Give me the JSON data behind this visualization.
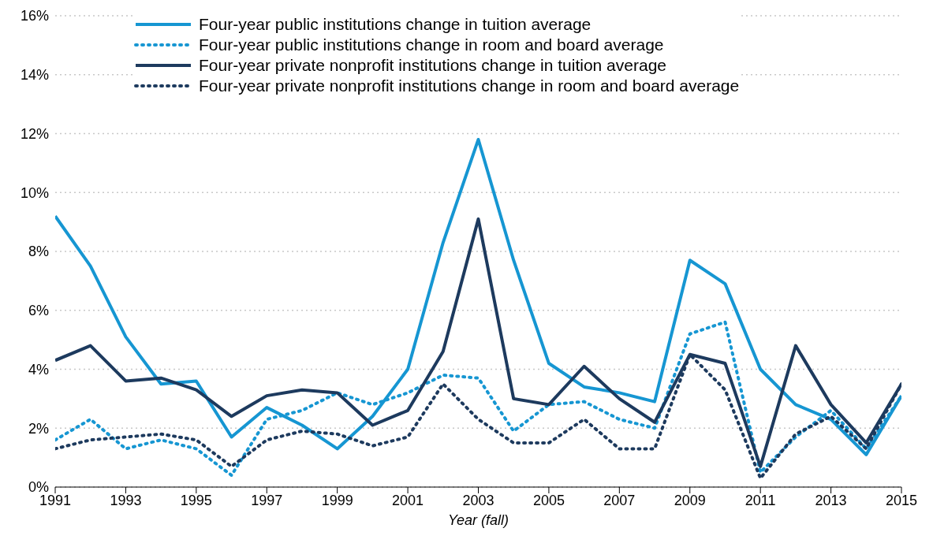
{
  "chart_data": {
    "type": "line",
    "xlabel": "Year (fall)",
    "x": [
      1991,
      1992,
      1993,
      1994,
      1995,
      1996,
      1997,
      1998,
      1999,
      2000,
      2001,
      2002,
      2003,
      2004,
      2005,
      2006,
      2007,
      2008,
      2009,
      2010,
      2011,
      2012,
      2013,
      2014,
      2015
    ],
    "xlim": [
      1991,
      2015
    ],
    "xticks": [
      1991,
      1993,
      1995,
      1997,
      1999,
      2001,
      2003,
      2005,
      2007,
      2009,
      2011,
      2013,
      2015
    ],
    "ylim": [
      0,
      16
    ],
    "yticks": [
      {
        "value": 0,
        "label": "0%"
      },
      {
        "value": 2,
        "label": "2%"
      },
      {
        "value": 4,
        "label": "4%"
      },
      {
        "value": 6,
        "label": "6%"
      },
      {
        "value": 8,
        "label": "8%"
      },
      {
        "value": 10,
        "label": "10%"
      },
      {
        "value": 12,
        "label": "12%"
      },
      {
        "value": 14,
        "label": "14%"
      },
      {
        "value": 16,
        "label": "16%"
      }
    ],
    "grid": "y",
    "legend": "top",
    "marker": "none",
    "series": [
      {
        "name": "Four-year public institutions change in tuition average",
        "color": "#1696d2",
        "line_style": "solid",
        "values": [
          9.2,
          7.5,
          5.1,
          3.5,
          3.6,
          1.7,
          2.7,
          2.1,
          1.3,
          2.4,
          4.0,
          8.3,
          11.8,
          7.7,
          4.2,
          3.4,
          3.2,
          2.9,
          7.7,
          6.9,
          4.0,
          2.8,
          2.3,
          1.1,
          3.1
        ]
      },
      {
        "name": "Four-year public institutions change in room and board average",
        "color": "#1696d2",
        "line_style": "dotted",
        "values": [
          1.6,
          2.3,
          1.3,
          1.6,
          1.3,
          0.4,
          2.3,
          2.6,
          3.2,
          2.8,
          3.2,
          3.8,
          3.7,
          1.9,
          2.8,
          2.9,
          2.3,
          2.0,
          5.2,
          5.6,
          0.5,
          1.7,
          2.6,
          1.3,
          3.1
        ]
      },
      {
        "name": "Four-year private nonprofit institutions change in tuition average",
        "color": "#1d3a5e",
        "line_style": "solid",
        "values": [
          4.3,
          4.8,
          3.6,
          3.7,
          3.3,
          2.4,
          3.1,
          3.3,
          3.2,
          2.1,
          2.6,
          4.6,
          9.1,
          3.0,
          2.8,
          4.1,
          3.0,
          2.2,
          4.5,
          4.2,
          0.7,
          4.8,
          2.8,
          1.5,
          3.5
        ]
      },
      {
        "name": "Four-year private nonprofit institutions change in room and board average",
        "color": "#1d3a5e",
        "line_style": "dotted",
        "values": [
          1.3,
          1.6,
          1.7,
          1.8,
          1.6,
          0.7,
          1.6,
          1.9,
          1.8,
          1.4,
          1.7,
          3.5,
          2.3,
          1.5,
          1.5,
          2.3,
          1.3,
          1.3,
          4.5,
          3.3,
          0.3,
          1.8,
          2.4,
          1.3,
          3.5
        ]
      }
    ]
  }
}
